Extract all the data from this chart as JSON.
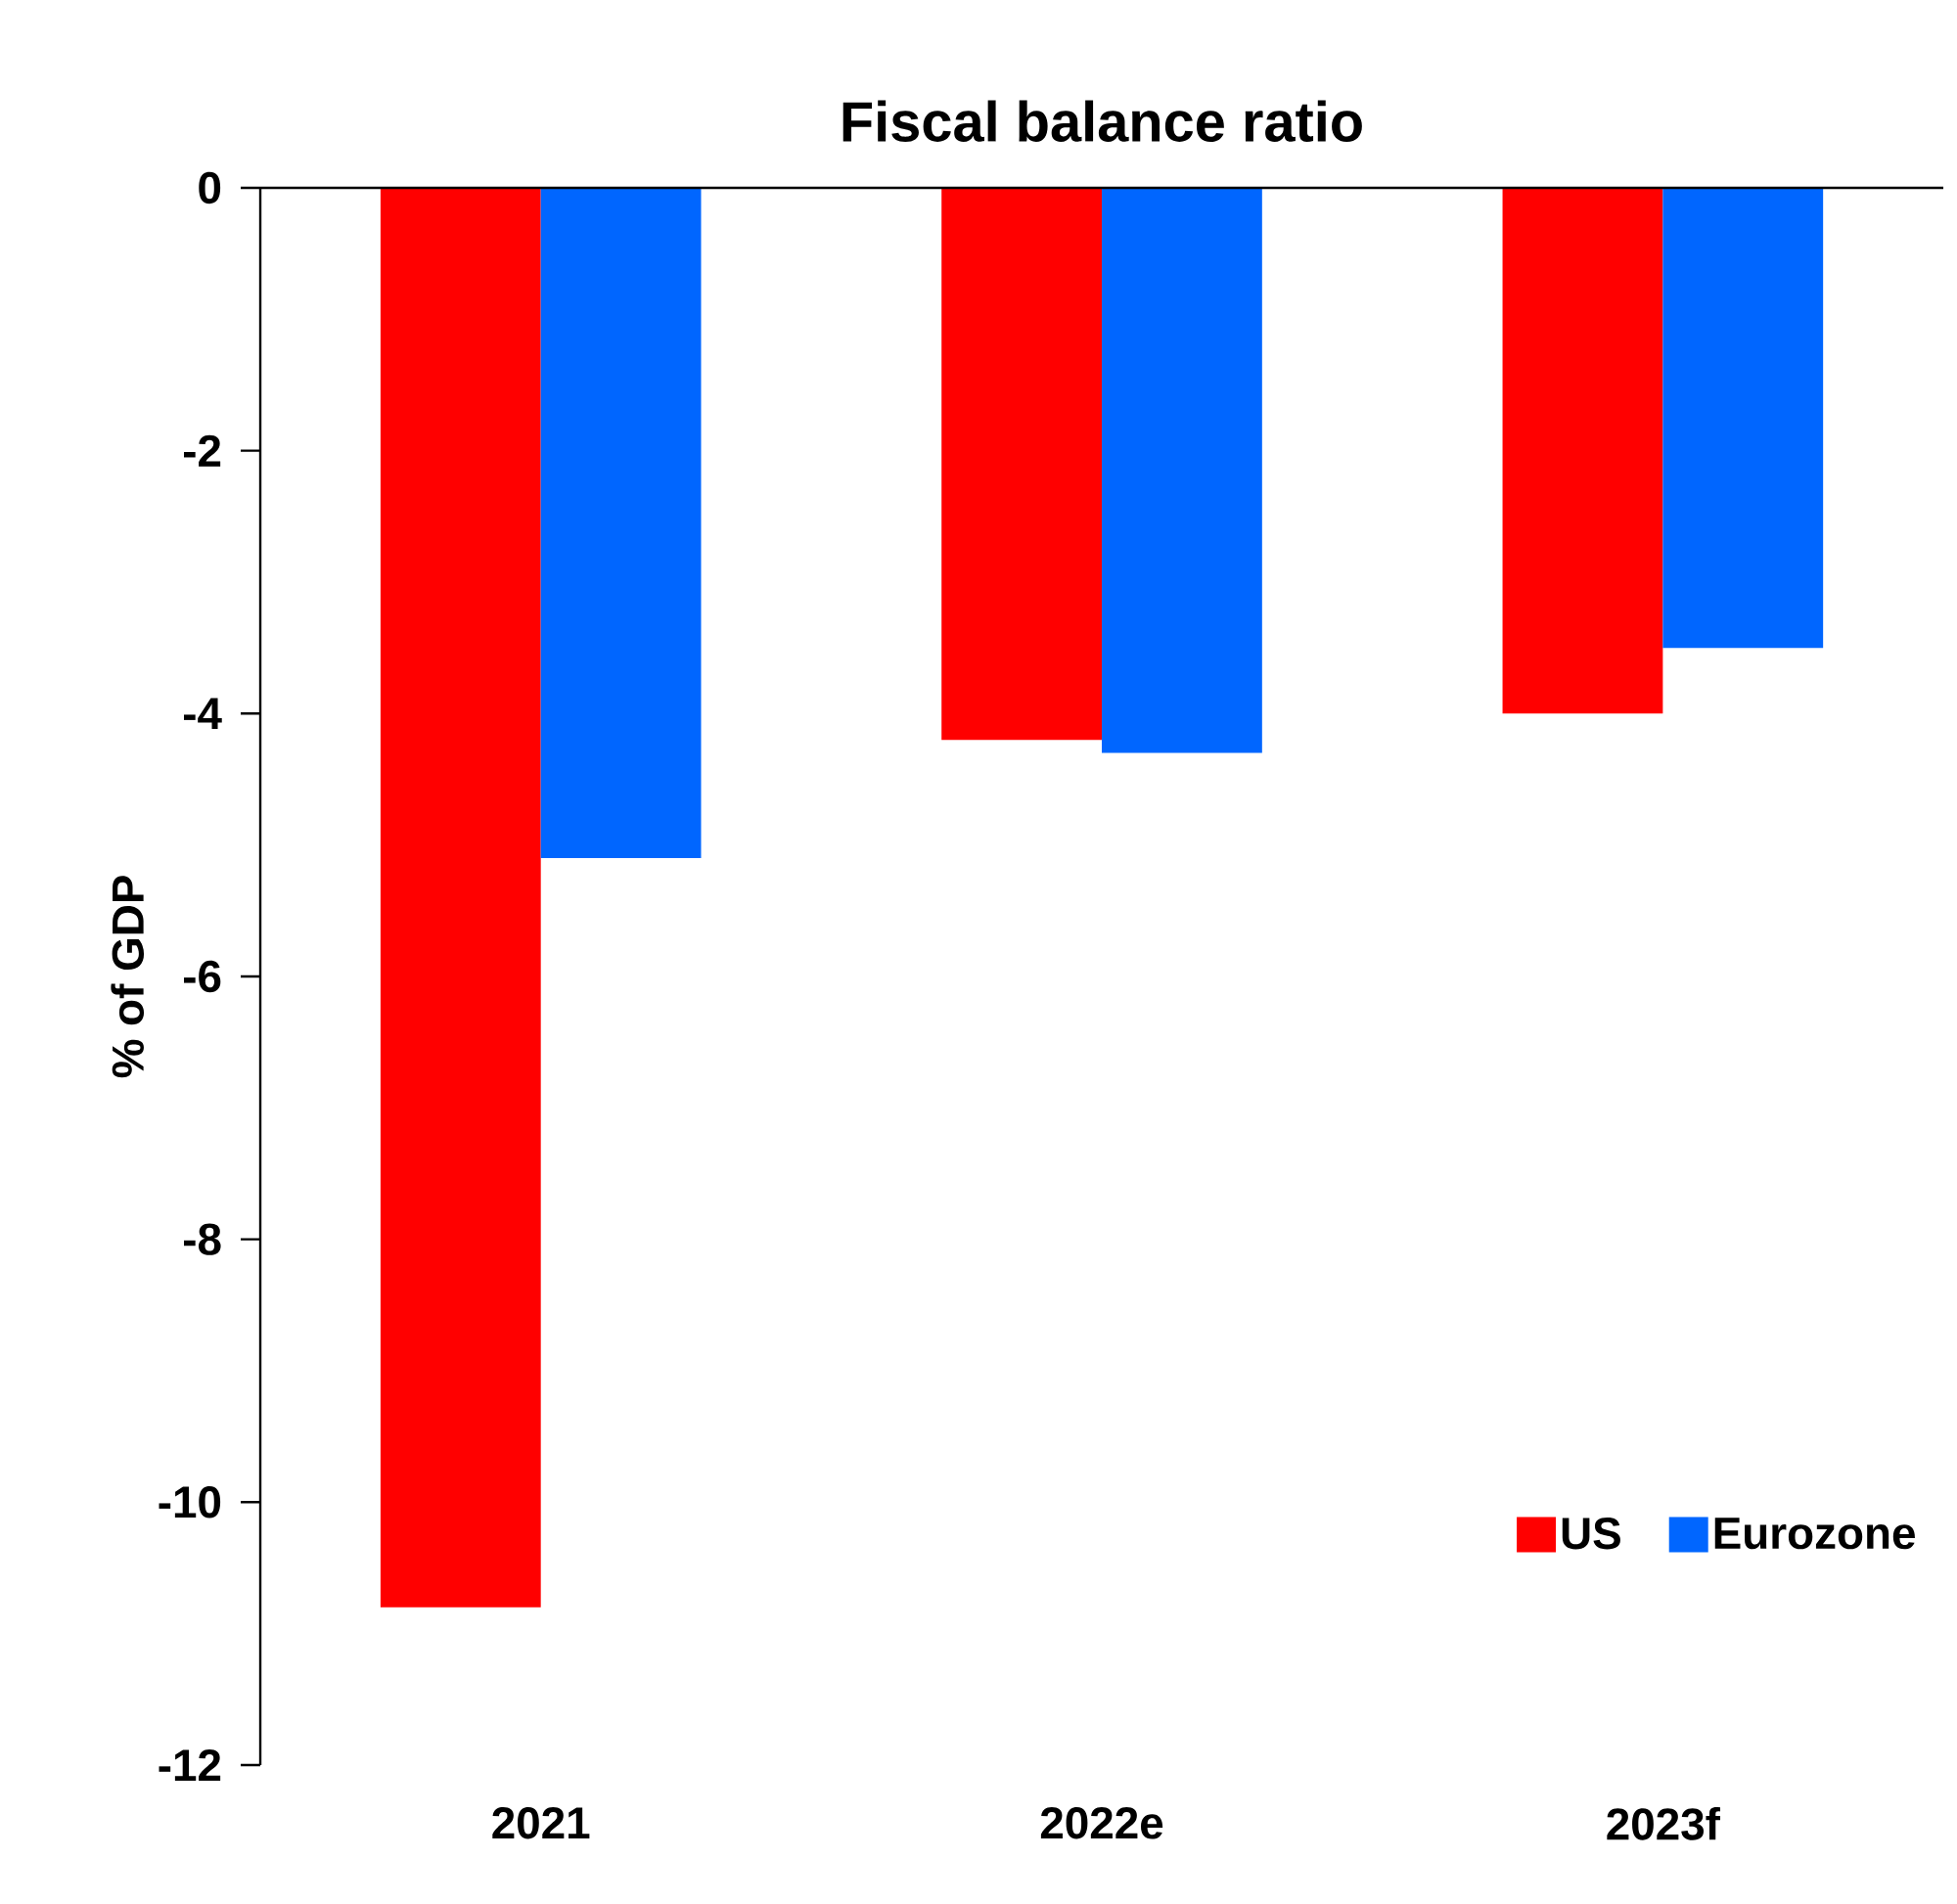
{
  "chart_data": {
    "type": "bar",
    "title": "Fiscal balance ratio",
    "ylabel": "% of GDP",
    "categories": [
      "2021",
      "2022e",
      "2023f"
    ],
    "series": [
      {
        "name": "US",
        "color": "#ff0000",
        "values": [
          -10.8,
          -4.2,
          -4.0
        ]
      },
      {
        "name": "Eurozone",
        "color": "#0066ff",
        "values": [
          -5.1,
          -4.3,
          -3.5
        ]
      }
    ],
    "ylim": [
      -12,
      0
    ],
    "yticks": [
      -12,
      -10,
      -8,
      -6,
      -4,
      -2,
      0
    ],
    "grid": false,
    "legend": "bottom right"
  }
}
